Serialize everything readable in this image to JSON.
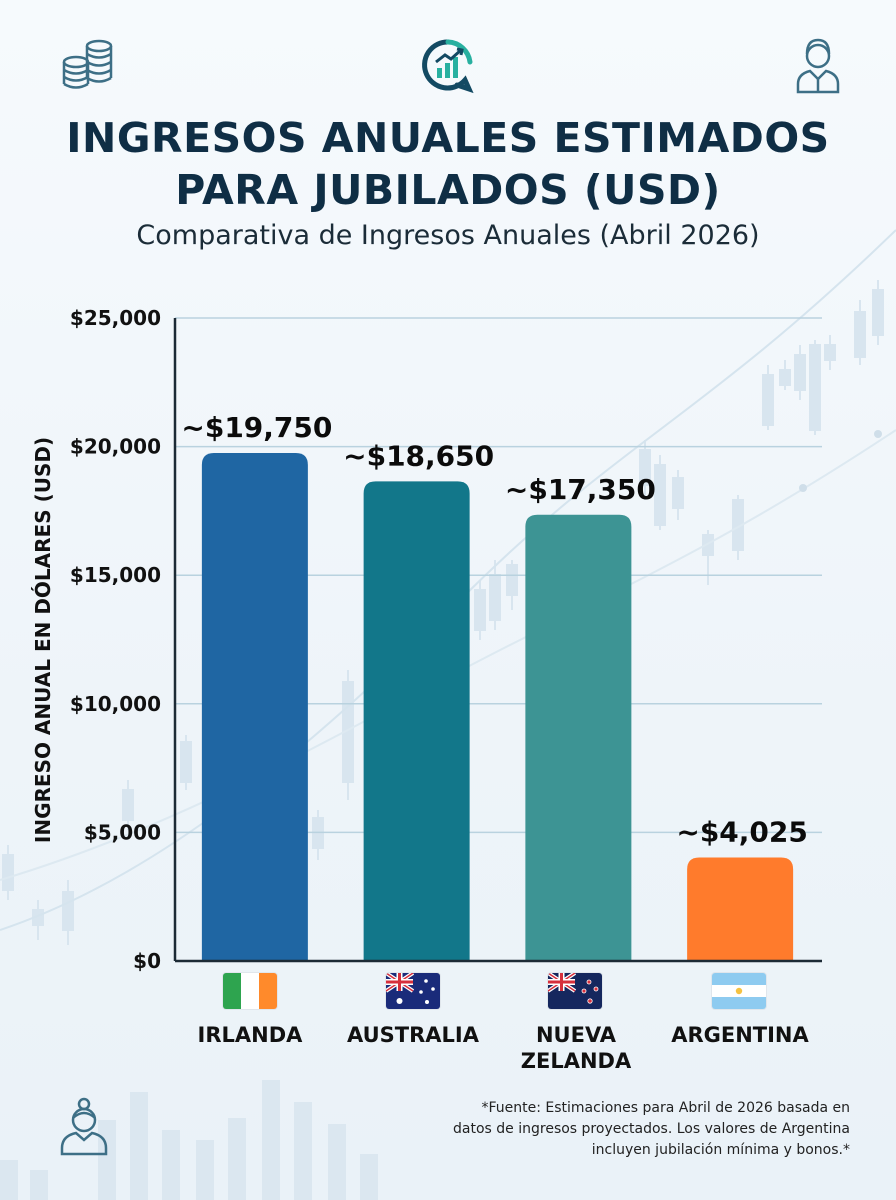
{
  "header": {
    "title": "INGRESOS ANUALES ESTIMADOS\nPARA JUBILADOS (USD)",
    "subtitle": "Comparativa de Ingresos Anuales (Abril 2026)"
  },
  "icons": {
    "top_left": "coins-icon",
    "top_center": "growth-chart-logo-icon",
    "top_right": "person-icon",
    "bottom_left": "elderly-person-icon"
  },
  "colors": {
    "title": "#0f2e45",
    "irlanda_bar": "#1f66a3",
    "australia_bar": "#12778a",
    "nueva_zelanda_bar": "#3d9494",
    "argentina_bar": "#ff7b2c"
  },
  "chart_data": {
    "type": "bar",
    "title": "INGRESOS ANUALES ESTIMADOS PARA JUBILADOS (USD)",
    "subtitle": "Comparativa de Ingresos Anuales (Abril 2026)",
    "ylabel": "INGRESO ANUAL EN DÓLARES (USD)",
    "xlabel": "",
    "categories": [
      "IRLANDA",
      "AUSTRALIA",
      "NUEVA\nZELANDA",
      "ARGENTINA"
    ],
    "values": [
      19750,
      18650,
      17350,
      4025
    ],
    "data_labels": [
      "~$19,750",
      "~$18,650",
      "~$17,350",
      "~$4,025"
    ],
    "bar_colors": [
      "#1f66a3",
      "#12778a",
      "#3d9494",
      "#ff7b2c"
    ],
    "ylim": [
      0,
      25000
    ],
    "yticks": [
      0,
      5000,
      10000,
      15000,
      20000,
      25000
    ],
    "ytick_labels": [
      "$0",
      "$5,000",
      "$10,000",
      "$15,000",
      "$20,000",
      "$25,000"
    ],
    "grid": true,
    "flags": [
      "irlanda-flag-icon",
      "australia-flag-icon",
      "nueva-zelanda-flag-icon",
      "argentina-flag-icon"
    ]
  },
  "footnote": "*Fuente: Estimaciones para Abril de 2026 basada en datos de ingresos proyectados. Los valores de Argentina incluyen jubilación mínima y bonos.*"
}
